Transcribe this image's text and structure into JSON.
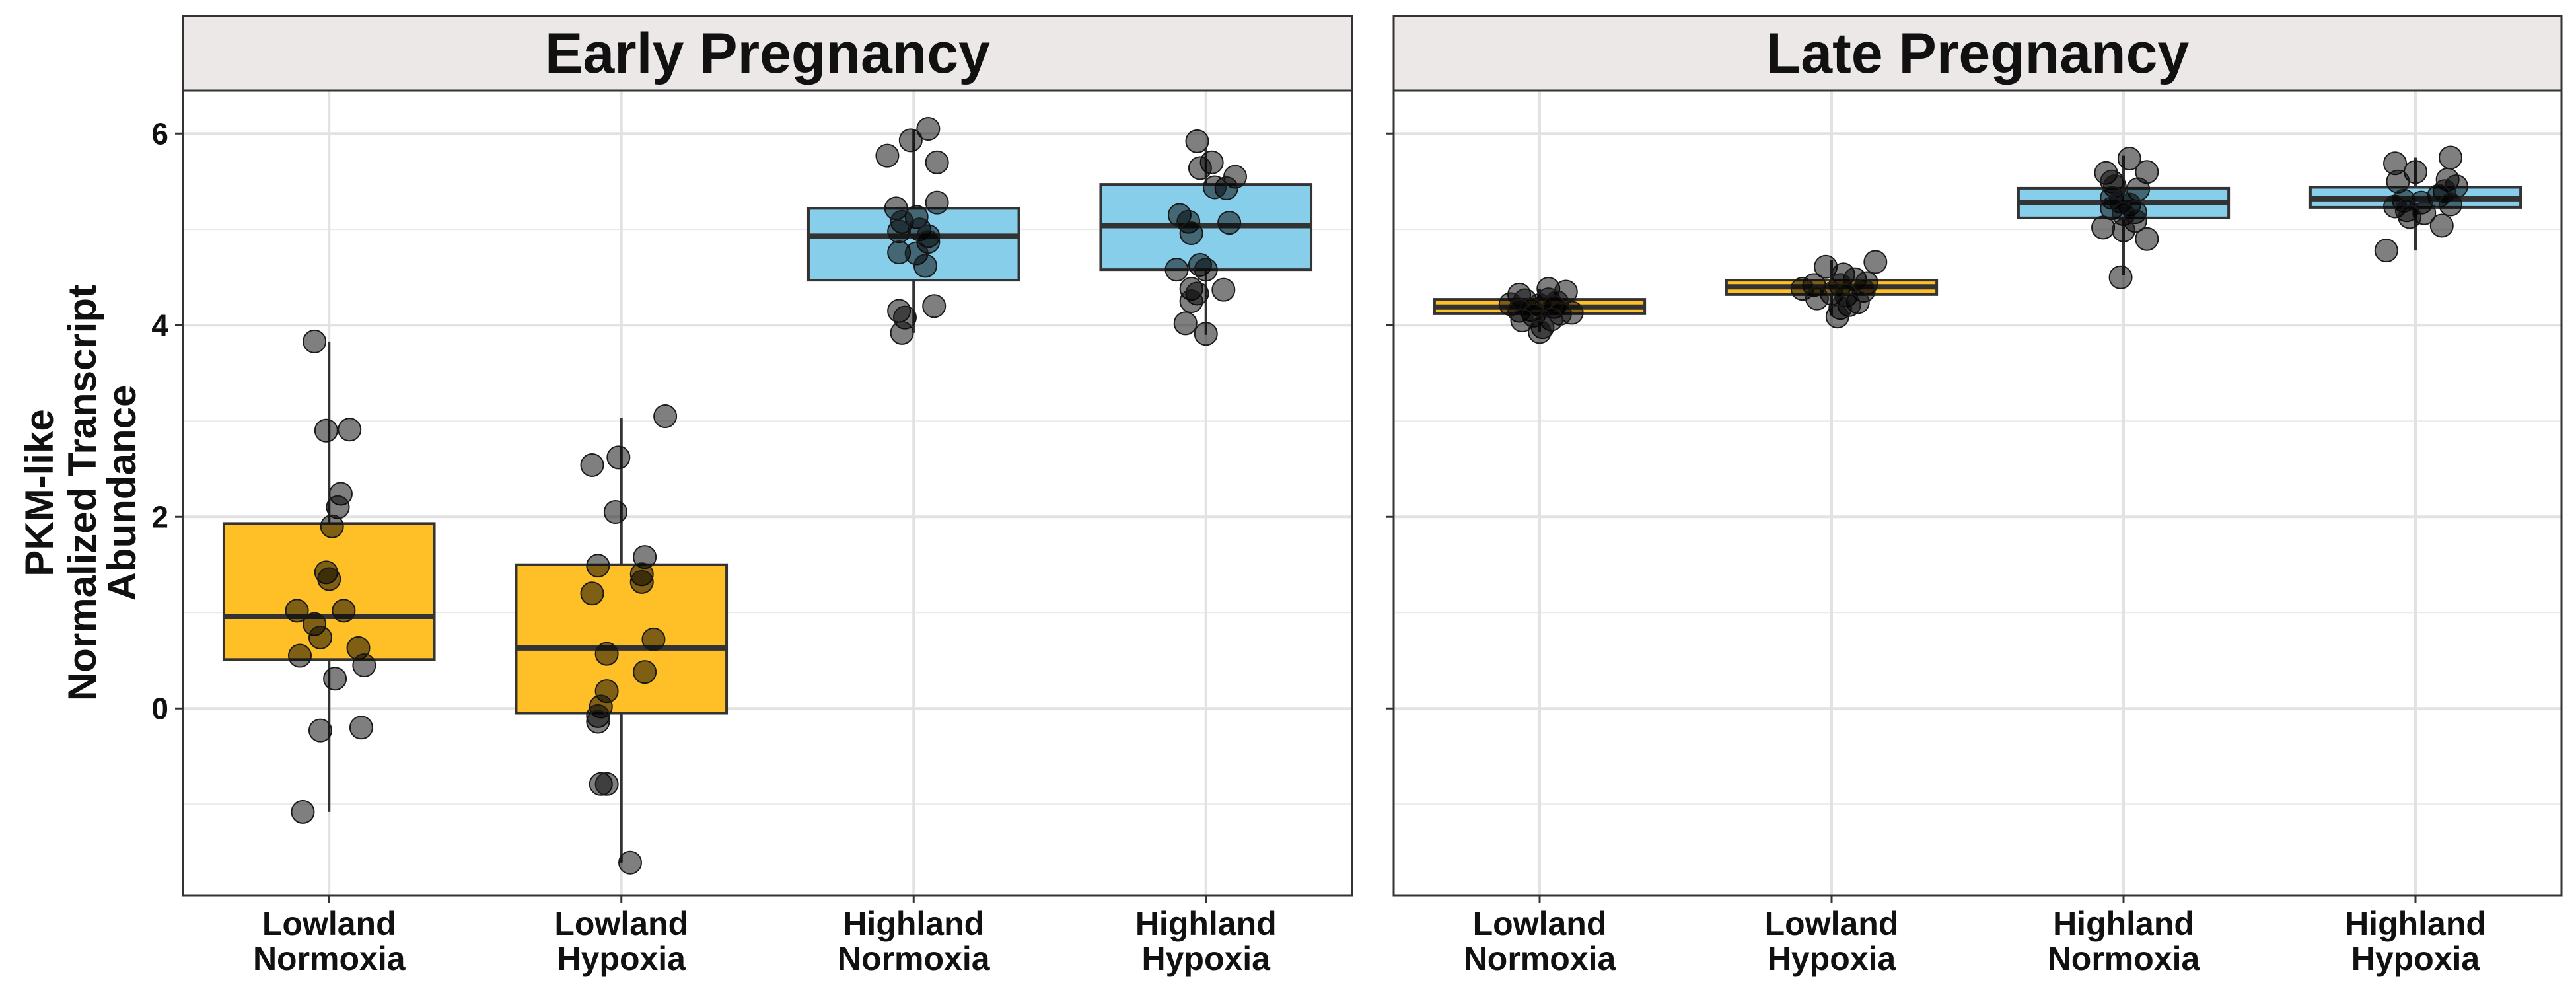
{
  "chart_data": {
    "type": "box",
    "ylabel": [
      "PKM-like",
      "Normalized Transcript",
      "Abundance"
    ],
    "yticks": [
      0,
      2,
      4,
      6
    ],
    "ylim": [
      -1.95,
      6.45
    ],
    "grid": true,
    "colors": {
      "lowland": "#FFBF26",
      "highland": "#87CEEB"
    },
    "panels": [
      {
        "title": "Early Pregnancy",
        "groups": [
          {
            "label": [
              "Lowland",
              "Normoxia"
            ],
            "color": "#FFBF26",
            "box": {
              "q1": 0.51,
              "median": 0.96,
              "q3": 1.93,
              "lower": -1.08,
              "upper": 3.83
            },
            "points": [
              [
                -0.05,
                3.83
              ],
              [
                -0.01,
                2.9
              ],
              [
                0.07,
                2.91
              ],
              [
                0.04,
                2.24
              ],
              [
                0.03,
                2.1
              ],
              [
                0.01,
                1.9
              ],
              [
                -0.01,
                1.42
              ],
              [
                0.0,
                1.35
              ],
              [
                -0.11,
                1.02
              ],
              [
                0.05,
                1.02
              ],
              [
                -0.05,
                0.88
              ],
              [
                -0.03,
                0.74
              ],
              [
                0.1,
                0.63
              ],
              [
                -0.1,
                0.55
              ],
              [
                0.12,
                0.45
              ],
              [
                0.02,
                0.31
              ],
              [
                -0.03,
                -0.23
              ],
              [
                0.11,
                -0.2
              ],
              [
                -0.09,
                -1.08
              ]
            ]
          },
          {
            "label": [
              "Lowland",
              "Hypoxia"
            ],
            "color": "#FFBF26",
            "box": {
              "q1": -0.05,
              "median": 0.63,
              "q3": 1.5,
              "lower": -1.61,
              "upper": 3.03
            },
            "points": [
              [
                0.15,
                3.05
              ],
              [
                -0.01,
                2.62
              ],
              [
                -0.1,
                2.54
              ],
              [
                -0.02,
                2.05
              ],
              [
                0.08,
                1.58
              ],
              [
                -0.08,
                1.49
              ],
              [
                0.07,
                1.4
              ],
              [
                0.07,
                1.32
              ],
              [
                -0.1,
                1.2
              ],
              [
                0.11,
                0.72
              ],
              [
                -0.05,
                0.57
              ],
              [
                0.08,
                0.38
              ],
              [
                -0.05,
                0.18
              ],
              [
                -0.07,
                0.02
              ],
              [
                -0.08,
                -0.08
              ],
              [
                -0.08,
                -0.14
              ],
              [
                -0.07,
                -0.79
              ],
              [
                -0.05,
                -0.79
              ],
              [
                0.03,
                -1.61
              ]
            ]
          },
          {
            "label": [
              "Highland",
              "Normoxia"
            ],
            "color": "#87CEEB",
            "box": {
              "q1": 4.47,
              "median": 4.93,
              "q3": 5.22,
              "lower": 3.92,
              "upper": 6.05
            },
            "points": [
              [
                0.05,
                6.05
              ],
              [
                -0.01,
                5.93
              ],
              [
                -0.09,
                5.77
              ],
              [
                0.08,
                5.7
              ],
              [
                0.08,
                5.28
              ],
              [
                -0.06,
                5.22
              ],
              [
                0.01,
                5.13
              ],
              [
                -0.04,
                5.08
              ],
              [
                0.02,
                5.0
              ],
              [
                -0.05,
                4.98
              ],
              [
                0.05,
                4.93
              ],
              [
                0.05,
                4.87
              ],
              [
                -0.05,
                4.76
              ],
              [
                0.01,
                4.75
              ],
              [
                0.04,
                4.62
              ],
              [
                0.07,
                4.2
              ],
              [
                -0.05,
                4.15
              ],
              [
                -0.03,
                4.08
              ],
              [
                -0.04,
                3.92
              ]
            ]
          },
          {
            "label": [
              "Highland",
              "Hypoxia"
            ],
            "color": "#87CEEB",
            "box": {
              "q1": 4.58,
              "median": 5.04,
              "q3": 5.47,
              "lower": 3.9,
              "upper": 5.85
            },
            "points": [
              [
                -0.03,
                5.92
              ],
              [
                0.02,
                5.7
              ],
              [
                -0.02,
                5.64
              ],
              [
                0.1,
                5.55
              ],
              [
                0.07,
                5.43
              ],
              [
                0.03,
                5.44
              ],
              [
                -0.09,
                5.15
              ],
              [
                -0.06,
                5.08
              ],
              [
                0.08,
                5.07
              ],
              [
                -0.05,
                4.96
              ],
              [
                -0.02,
                4.63
              ],
              [
                -0.1,
                4.58
              ],
              [
                0.0,
                4.58
              ],
              [
                -0.05,
                4.38
              ],
              [
                0.06,
                4.37
              ],
              [
                -0.03,
                4.33
              ],
              [
                -0.05,
                4.25
              ],
              [
                -0.07,
                4.02
              ],
              [
                0.0,
                3.91
              ]
            ]
          }
        ]
      },
      {
        "title": "Late Pregnancy",
        "groups": [
          {
            "label": [
              "Lowland",
              "Normoxia"
            ],
            "color": "#FFBF26",
            "box": {
              "q1": 4.12,
              "median": 4.19,
              "q3": 4.27,
              "lower": 3.93,
              "upper": 4.38
            },
            "points": [
              [
                0.03,
                4.38
              ],
              [
                0.09,
                4.35
              ],
              [
                -0.07,
                4.32
              ],
              [
                0.03,
                4.27
              ],
              [
                -0.05,
                4.26
              ],
              [
                0.06,
                4.24
              ],
              [
                -0.1,
                4.22
              ],
              [
                0.0,
                4.21
              ],
              [
                0.05,
                4.19
              ],
              [
                -0.03,
                4.16
              ],
              [
                -0.07,
                4.15
              ],
              [
                0.11,
                4.13
              ],
              [
                0.07,
                4.12
              ],
              [
                -0.02,
                4.1
              ],
              [
                0.04,
                4.06
              ],
              [
                -0.06,
                4.05
              ],
              [
                0.01,
                3.98
              ],
              [
                0.0,
                3.93
              ]
            ]
          },
          {
            "label": [
              "Lowland",
              "Hypoxia"
            ],
            "color": "#FFBF26",
            "box": {
              "q1": 4.32,
              "median": 4.4,
              "q3": 4.47,
              "lower": 4.1,
              "upper": 4.68
            },
            "points": [
              [
                0.15,
                4.66
              ],
              [
                -0.02,
                4.61
              ],
              [
                0.04,
                4.53
              ],
              [
                0.08,
                4.48
              ],
              [
                0.12,
                4.44
              ],
              [
                -0.06,
                4.42
              ],
              [
                0.03,
                4.42
              ],
              [
                -0.1,
                4.38
              ],
              [
                0.11,
                4.36
              ],
              [
                0.0,
                4.33
              ],
              [
                0.05,
                4.31
              ],
              [
                -0.05,
                4.28
              ],
              [
                0.09,
                4.24
              ],
              [
                0.06,
                4.21
              ],
              [
                0.03,
                4.18
              ],
              [
                0.02,
                4.09
              ]
            ]
          },
          {
            "label": [
              "Highland",
              "Normoxia"
            ],
            "color": "#87CEEB",
            "box": {
              "q1": 5.12,
              "median": 5.28,
              "q3": 5.43,
              "lower": 4.52,
              "upper": 5.77
            },
            "points": [
              [
                0.02,
                5.74
              ],
              [
                -0.06,
                5.59
              ],
              [
                0.08,
                5.6
              ],
              [
                -0.04,
                5.5
              ],
              [
                -0.03,
                5.45
              ],
              [
                0.05,
                5.42
              ],
              [
                -0.04,
                5.33
              ],
              [
                -0.01,
                5.29
              ],
              [
                0.02,
                5.26
              ],
              [
                -0.04,
                5.22
              ],
              [
                0.04,
                5.18
              ],
              [
                0.0,
                5.16
              ],
              [
                0.04,
                5.09
              ],
              [
                -0.07,
                5.02
              ],
              [
                0.0,
                4.99
              ],
              [
                0.08,
                4.9
              ],
              [
                -0.01,
                4.5
              ]
            ]
          },
          {
            "label": [
              "Highland",
              "Hypoxia"
            ],
            "color": "#87CEEB",
            "box": {
              "q1": 5.23,
              "median": 5.32,
              "q3": 5.44,
              "lower": 4.78,
              "upper": 5.75
            },
            "points": [
              [
                0.12,
                5.75
              ],
              [
                -0.07,
                5.69
              ],
              [
                0.0,
                5.6
              ],
              [
                -0.06,
                5.5
              ],
              [
                0.11,
                5.52
              ],
              [
                0.14,
                5.45
              ],
              [
                0.1,
                5.4
              ],
              [
                0.08,
                5.35
              ],
              [
                -0.04,
                5.3
              ],
              [
                0.02,
                5.28
              ],
              [
                0.12,
                5.26
              ],
              [
                -0.07,
                5.24
              ],
              [
                -0.03,
                5.2
              ],
              [
                0.03,
                5.17
              ],
              [
                -0.02,
                5.13
              ],
              [
                0.09,
                5.04
              ],
              [
                -0.1,
                4.78
              ]
            ]
          }
        ]
      }
    ]
  }
}
